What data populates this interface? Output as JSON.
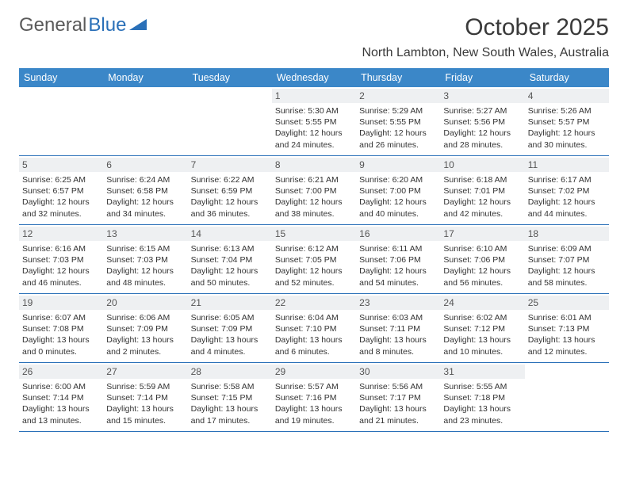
{
  "brand": {
    "part1": "General",
    "part2": "Blue"
  },
  "title": "October 2025",
  "location": "North Lambton, New South Wales, Australia",
  "colors": {
    "header_bg": "#3b87c8",
    "accent": "#2a70b8",
    "daynum_bg": "#eef0f2",
    "text": "#333333",
    "title": "#3a3a3a"
  },
  "weekdays": [
    "Sunday",
    "Monday",
    "Tuesday",
    "Wednesday",
    "Thursday",
    "Friday",
    "Saturday"
  ],
  "weeks": [
    [
      {
        "n": "",
        "sr": "",
        "ss": "",
        "dl": ""
      },
      {
        "n": "",
        "sr": "",
        "ss": "",
        "dl": ""
      },
      {
        "n": "",
        "sr": "",
        "ss": "",
        "dl": ""
      },
      {
        "n": "1",
        "sr": "Sunrise: 5:30 AM",
        "ss": "Sunset: 5:55 PM",
        "dl": "Daylight: 12 hours and 24 minutes."
      },
      {
        "n": "2",
        "sr": "Sunrise: 5:29 AM",
        "ss": "Sunset: 5:55 PM",
        "dl": "Daylight: 12 hours and 26 minutes."
      },
      {
        "n": "3",
        "sr": "Sunrise: 5:27 AM",
        "ss": "Sunset: 5:56 PM",
        "dl": "Daylight: 12 hours and 28 minutes."
      },
      {
        "n": "4",
        "sr": "Sunrise: 5:26 AM",
        "ss": "Sunset: 5:57 PM",
        "dl": "Daylight: 12 hours and 30 minutes."
      }
    ],
    [
      {
        "n": "5",
        "sr": "Sunrise: 6:25 AM",
        "ss": "Sunset: 6:57 PM",
        "dl": "Daylight: 12 hours and 32 minutes."
      },
      {
        "n": "6",
        "sr": "Sunrise: 6:24 AM",
        "ss": "Sunset: 6:58 PM",
        "dl": "Daylight: 12 hours and 34 minutes."
      },
      {
        "n": "7",
        "sr": "Sunrise: 6:22 AM",
        "ss": "Sunset: 6:59 PM",
        "dl": "Daylight: 12 hours and 36 minutes."
      },
      {
        "n": "8",
        "sr": "Sunrise: 6:21 AM",
        "ss": "Sunset: 7:00 PM",
        "dl": "Daylight: 12 hours and 38 minutes."
      },
      {
        "n": "9",
        "sr": "Sunrise: 6:20 AM",
        "ss": "Sunset: 7:00 PM",
        "dl": "Daylight: 12 hours and 40 minutes."
      },
      {
        "n": "10",
        "sr": "Sunrise: 6:18 AM",
        "ss": "Sunset: 7:01 PM",
        "dl": "Daylight: 12 hours and 42 minutes."
      },
      {
        "n": "11",
        "sr": "Sunrise: 6:17 AM",
        "ss": "Sunset: 7:02 PM",
        "dl": "Daylight: 12 hours and 44 minutes."
      }
    ],
    [
      {
        "n": "12",
        "sr": "Sunrise: 6:16 AM",
        "ss": "Sunset: 7:03 PM",
        "dl": "Daylight: 12 hours and 46 minutes."
      },
      {
        "n": "13",
        "sr": "Sunrise: 6:15 AM",
        "ss": "Sunset: 7:03 PM",
        "dl": "Daylight: 12 hours and 48 minutes."
      },
      {
        "n": "14",
        "sr": "Sunrise: 6:13 AM",
        "ss": "Sunset: 7:04 PM",
        "dl": "Daylight: 12 hours and 50 minutes."
      },
      {
        "n": "15",
        "sr": "Sunrise: 6:12 AM",
        "ss": "Sunset: 7:05 PM",
        "dl": "Daylight: 12 hours and 52 minutes."
      },
      {
        "n": "16",
        "sr": "Sunrise: 6:11 AM",
        "ss": "Sunset: 7:06 PM",
        "dl": "Daylight: 12 hours and 54 minutes."
      },
      {
        "n": "17",
        "sr": "Sunrise: 6:10 AM",
        "ss": "Sunset: 7:06 PM",
        "dl": "Daylight: 12 hours and 56 minutes."
      },
      {
        "n": "18",
        "sr": "Sunrise: 6:09 AM",
        "ss": "Sunset: 7:07 PM",
        "dl": "Daylight: 12 hours and 58 minutes."
      }
    ],
    [
      {
        "n": "19",
        "sr": "Sunrise: 6:07 AM",
        "ss": "Sunset: 7:08 PM",
        "dl": "Daylight: 13 hours and 0 minutes."
      },
      {
        "n": "20",
        "sr": "Sunrise: 6:06 AM",
        "ss": "Sunset: 7:09 PM",
        "dl": "Daylight: 13 hours and 2 minutes."
      },
      {
        "n": "21",
        "sr": "Sunrise: 6:05 AM",
        "ss": "Sunset: 7:09 PM",
        "dl": "Daylight: 13 hours and 4 minutes."
      },
      {
        "n": "22",
        "sr": "Sunrise: 6:04 AM",
        "ss": "Sunset: 7:10 PM",
        "dl": "Daylight: 13 hours and 6 minutes."
      },
      {
        "n": "23",
        "sr": "Sunrise: 6:03 AM",
        "ss": "Sunset: 7:11 PM",
        "dl": "Daylight: 13 hours and 8 minutes."
      },
      {
        "n": "24",
        "sr": "Sunrise: 6:02 AM",
        "ss": "Sunset: 7:12 PM",
        "dl": "Daylight: 13 hours and 10 minutes."
      },
      {
        "n": "25",
        "sr": "Sunrise: 6:01 AM",
        "ss": "Sunset: 7:13 PM",
        "dl": "Daylight: 13 hours and 12 minutes."
      }
    ],
    [
      {
        "n": "26",
        "sr": "Sunrise: 6:00 AM",
        "ss": "Sunset: 7:14 PM",
        "dl": "Daylight: 13 hours and 13 minutes."
      },
      {
        "n": "27",
        "sr": "Sunrise: 5:59 AM",
        "ss": "Sunset: 7:14 PM",
        "dl": "Daylight: 13 hours and 15 minutes."
      },
      {
        "n": "28",
        "sr": "Sunrise: 5:58 AM",
        "ss": "Sunset: 7:15 PM",
        "dl": "Daylight: 13 hours and 17 minutes."
      },
      {
        "n": "29",
        "sr": "Sunrise: 5:57 AM",
        "ss": "Sunset: 7:16 PM",
        "dl": "Daylight: 13 hours and 19 minutes."
      },
      {
        "n": "30",
        "sr": "Sunrise: 5:56 AM",
        "ss": "Sunset: 7:17 PM",
        "dl": "Daylight: 13 hours and 21 minutes."
      },
      {
        "n": "31",
        "sr": "Sunrise: 5:55 AM",
        "ss": "Sunset: 7:18 PM",
        "dl": "Daylight: 13 hours and 23 minutes."
      },
      {
        "n": "",
        "sr": "",
        "ss": "",
        "dl": ""
      }
    ]
  ]
}
